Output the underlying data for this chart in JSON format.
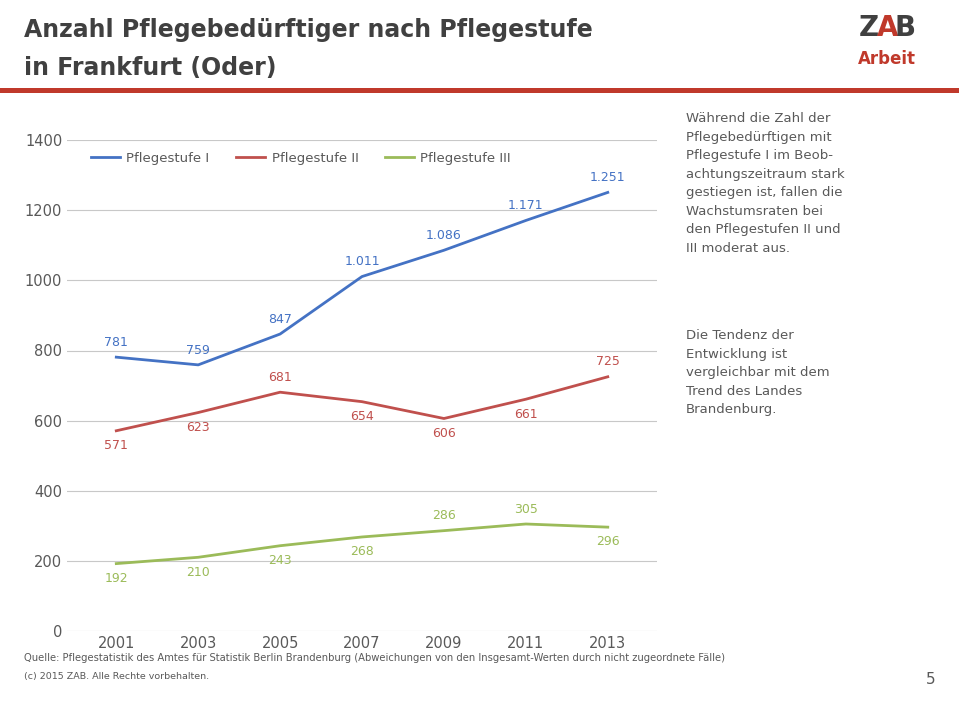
{
  "title_line1": "Anzahl Pflegebedürftiger nach Pflegestufe",
  "title_line2": "in Frankfurt (Oder)",
  "years": [
    2001,
    2003,
    2005,
    2007,
    2009,
    2011,
    2013
  ],
  "pflegestufe_I": [
    781,
    759,
    847,
    1011,
    1086,
    1171,
    1251
  ],
  "pflegestufe_II": [
    571,
    623,
    681,
    654,
    606,
    661,
    725
  ],
  "pflegestufe_III": [
    192,
    210,
    243,
    268,
    286,
    305,
    296
  ],
  "color_I": "#4472C4",
  "color_II": "#C0504D",
  "color_III": "#9BBB59",
  "ylim": [
    0,
    1400
  ],
  "yticks": [
    0,
    200,
    400,
    600,
    800,
    1000,
    1200,
    1400
  ],
  "legend_I": "Pflegestufe I",
  "legend_II": "Pflegestufe II",
  "legend_III": "Pflegestufe III",
  "source_text": "Quelle: Pflegestatistik des Amtes für Statistik Berlin Brandenburg (Abweichungen von den Insgesamt-Werten durch nicht zugeordnete Fälle)",
  "copyright_text": "(c) 2015 ZAB. Alle Rechte vorbehalten.",
  "page_number": "5",
  "description_text1": "Während die Zahl der\nPflegebedürftigen mit\nPflegestufe I im Beob-\nachtungszeitraum stark\ngestiegen ist, fallen die\nWachstumsraten bei\nden Pflegestufen II und\nIII moderat aus.",
  "description_text2": "Die Tendenz der\nEntwicklung ist\nvergleichbar mit dem\nTrend des Landes\nBrandenburg.",
  "bg_color": "#FFFFFF",
  "grid_color": "#C8C8C8",
  "title_color": "#404040",
  "text_color": "#595959",
  "red_line_color": "#C0392B",
  "zab_z_color": "#404040",
  "zab_ab_color": "#C0392B",
  "arbeit_color": "#C0392B"
}
